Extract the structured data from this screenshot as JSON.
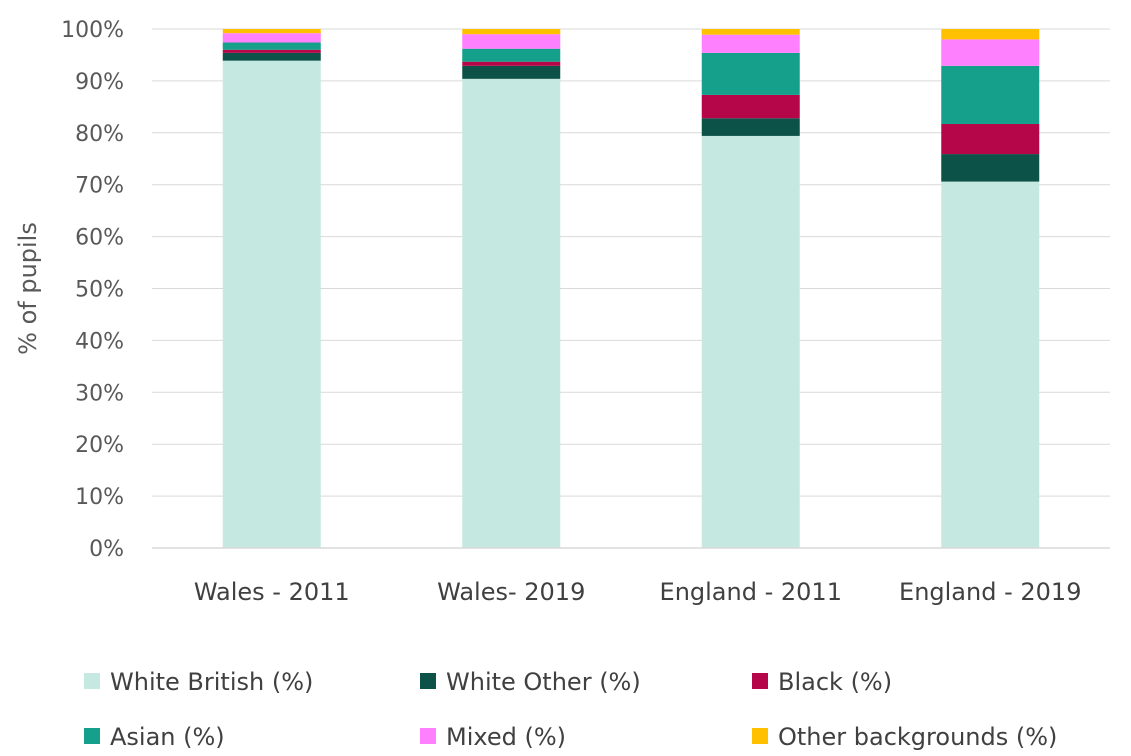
{
  "chart_data": {
    "type": "bar",
    "stacked": true,
    "title": "",
    "xlabel": "",
    "ylabel": "% of pupils",
    "ylim": [
      0,
      100
    ],
    "y_ticks": [
      "0%",
      "10%",
      "20%",
      "30%",
      "40%",
      "50%",
      "60%",
      "70%",
      "80%",
      "90%",
      "100%"
    ],
    "grid": true,
    "legend_position": "bottom",
    "categories": [
      "Wales - 2011",
      "Wales- 2019",
      "England - 2011",
      "England - 2019"
    ],
    "series": [
      {
        "name": "White British (%)",
        "color": "#c5e8e0",
        "values": [
          93.9,
          90.4,
          79.4,
          70.6
        ]
      },
      {
        "name": "White Other (%)",
        "color": "#0c5248",
        "values": [
          1.5,
          2.5,
          3.4,
          5.3
        ]
      },
      {
        "name": "Black (%)",
        "color": "#b5064a",
        "values": [
          0.6,
          0.8,
          4.5,
          5.8
        ]
      },
      {
        "name": "Asian (%)",
        "color": "#14a08a",
        "values": [
          1.4,
          2.5,
          8.1,
          11.2
        ]
      },
      {
        "name": "Mixed (%)",
        "color": "#ff80ff",
        "values": [
          1.8,
          2.8,
          3.5,
          5.1
        ]
      },
      {
        "name": "Other backgrounds (%)",
        "color": "#ffc000",
        "values": [
          0.8,
          1.0,
          1.1,
          2.0
        ]
      }
    ]
  }
}
